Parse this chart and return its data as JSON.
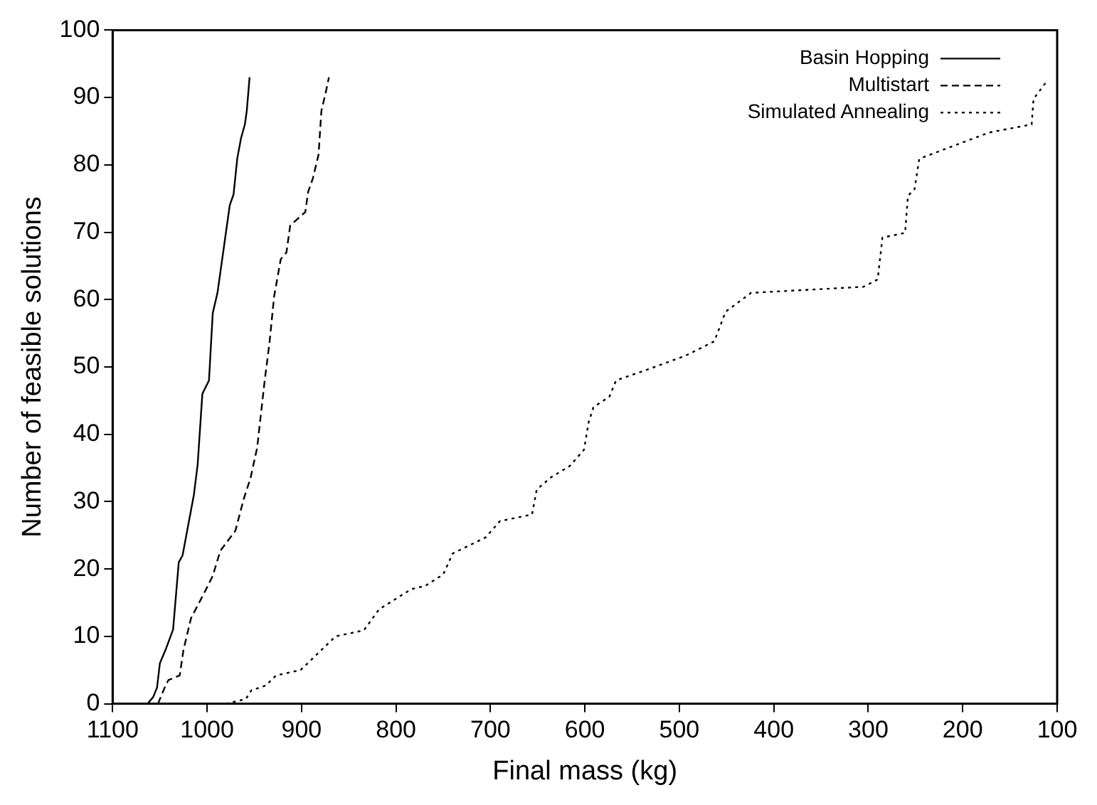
{
  "chart_data": {
    "type": "line",
    "xlabel": "Final mass (kg)",
    "ylabel": "Number of feasible solutions",
    "xlim": [
      1100,
      100
    ],
    "xticks": [
      1100,
      1000,
      900,
      800,
      700,
      600,
      500,
      400,
      300,
      200,
      100
    ],
    "ylim": [
      0,
      100
    ],
    "yticks": [
      0,
      10,
      20,
      30,
      40,
      50,
      60,
      70,
      80,
      90,
      100
    ],
    "grid": false,
    "legend": "top right",
    "marker": "none",
    "series": [
      {
        "name": "Basin Hopping",
        "color": "#000000",
        "line_style": "solid",
        "x": [
          1063,
          1057,
          1053,
          1050,
          1044,
          1036,
          1030,
          1026,
          1014,
          1010,
          1005,
          998,
          994,
          989,
          985,
          981,
          976,
          972,
          968,
          964,
          960,
          958,
          955
        ],
        "values": [
          0,
          1,
          2.4,
          6,
          8,
          11,
          21,
          22,
          31,
          35.5,
          46,
          48,
          58,
          61,
          65,
          69,
          74,
          75.6,
          81,
          84,
          86,
          88,
          93
        ]
      },
      {
        "name": "Multistart",
        "color": "#000000",
        "line_style": "dashed",
        "x": [
          1052,
          1044,
          1041,
          1029,
          1025,
          1017,
          1001,
          994,
          986,
          970,
          961,
          954,
          947,
          939,
          934,
          929,
          922,
          916,
          912,
          896,
          893,
          888,
          882,
          879,
          874,
          871
        ],
        "values": [
          0,
          2.7,
          3.5,
          4.2,
          8,
          12.7,
          17,
          19,
          22.7,
          25.7,
          30.5,
          33.5,
          38,
          48,
          53.5,
          60.5,
          66,
          67,
          71,
          73,
          76,
          78,
          81.5,
          88,
          91,
          93
        ]
      },
      {
        "name": "Simulated Annealing",
        "color": "#000000",
        "line_style": "dotted",
        "x": [
          980,
          959,
          953,
          938,
          927,
          901,
          864,
          834,
          818,
          784,
          769,
          750,
          740,
          705,
          690,
          656,
          651,
          636,
          616,
          601,
          596,
          591,
          574,
          567,
          532,
          493,
          463,
          451,
          424,
          384,
          305,
          290,
          285,
          261,
          258,
          251,
          246,
          216,
          172,
          127,
          125,
          110
        ],
        "values": [
          0,
          0.7,
          2,
          2.7,
          4.2,
          5,
          10,
          10.9,
          14,
          17,
          17.5,
          19.2,
          22.3,
          24.7,
          27.1,
          28.1,
          31.8,
          33.6,
          35.3,
          37.7,
          41.8,
          44,
          45.6,
          48,
          49.7,
          51.7,
          53.8,
          58.2,
          61,
          61.3,
          61.9,
          63,
          69.2,
          69.9,
          75.4,
          76.4,
          80.9,
          82.5,
          84.8,
          86,
          89.8,
          92.6
        ]
      }
    ]
  }
}
